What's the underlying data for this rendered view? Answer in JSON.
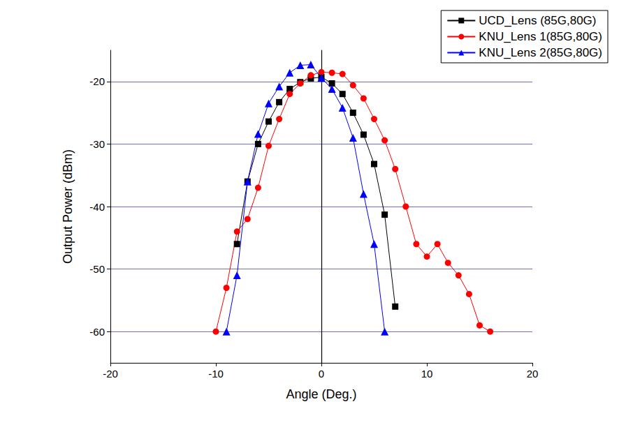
{
  "chart_data": {
    "type": "line",
    "x_label": "Angle (Deg.)",
    "y_label": "Output Power (dBm)",
    "xlim": [
      -20,
      20
    ],
    "xticks": [
      -20,
      -10,
      0,
      10,
      20
    ],
    "ylim": [
      -65,
      -15
    ],
    "yticks": [
      -60,
      -50,
      -40,
      -30,
      -20
    ],
    "grid": true,
    "legend": "upper right",
    "series": [
      {
        "name": "UCD_Lens (85G,80G)",
        "color": "#000000",
        "marker": "square",
        "x": [
          -8,
          -7,
          -6,
          -5,
          -4,
          -3,
          -2,
          -1,
          0,
          1,
          2,
          3,
          4,
          5,
          6,
          7
        ],
        "values": [
          -46,
          -36,
          -30,
          -26.4,
          -23.3,
          -21.2,
          -20.1,
          -19.5,
          -19.3,
          -20.3,
          -22,
          -25,
          -28.5,
          -33.2,
          -41.3,
          -56
        ]
      },
      {
        "name": "KNU_Lens 1(85G,80G)",
        "color": "#ff0000",
        "marker": "circle",
        "x": [
          -10,
          -9,
          -8,
          -7,
          -6,
          -5,
          -4,
          -3,
          -2,
          -1,
          0,
          1,
          2,
          3,
          4,
          5,
          6,
          7,
          8,
          9,
          10,
          11,
          12,
          13,
          14,
          15,
          16
        ],
        "values": [
          -60,
          -53,
          -44,
          -42,
          -37,
          -30.3,
          -26,
          -22,
          -20.3,
          -19,
          -18.5,
          -18.6,
          -18.8,
          -20.6,
          -22.7,
          -26,
          -29.4,
          -34,
          -40,
          -46,
          -48,
          -46,
          -49,
          -51,
          -54,
          -59,
          -60
        ]
      },
      {
        "name": "KNU_Lens 2(85G,80G)",
        "color": "#0000ff",
        "marker": "triangle",
        "x": [
          -9,
          -8,
          -7,
          -6,
          -5,
          -4,
          -3,
          -2,
          -1,
          0,
          1,
          2,
          3,
          4,
          5,
          6
        ],
        "values": [
          -60,
          -51,
          -36,
          -28.4,
          -23.5,
          -20.8,
          -18.6,
          -17.4,
          -17.3,
          -19.4,
          -21.2,
          -24.2,
          -29,
          -38,
          -46,
          -60
        ]
      }
    ]
  }
}
